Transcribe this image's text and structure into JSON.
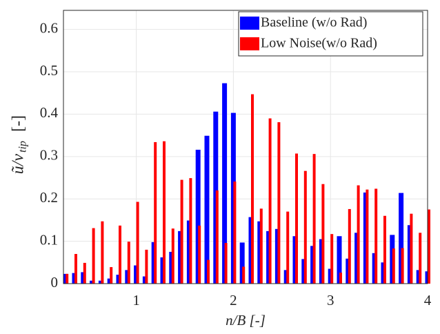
{
  "chart_data": {
    "type": "bar",
    "x_label": "n/B [-]",
    "y_label": "ũ/v",
    "y_label_subscript": "tip",
    "y_label_unit": "[-]",
    "x": [
      0.2727,
      0.3636,
      0.4545,
      0.5455,
      0.6364,
      0.7273,
      0.8182,
      0.9091,
      1.0,
      1.0909,
      1.1818,
      1.2727,
      1.3636,
      1.4545,
      1.5455,
      1.6364,
      1.7273,
      1.8182,
      1.9091,
      2.0,
      2.0909,
      2.1818,
      2.2727,
      2.3636,
      2.4545,
      2.5455,
      2.6364,
      2.7273,
      2.8182,
      2.9091,
      3.0,
      3.0909,
      3.1818,
      3.2727,
      3.3636,
      3.4545,
      3.5455,
      3.6364,
      3.7273,
      3.8182,
      3.9091,
      4.0
    ],
    "series": [
      {
        "name": "Baseline (w/o Rad)",
        "color": "#0000ff",
        "values": [
          0.023,
          0.025,
          0.027,
          0.007,
          0.007,
          0.012,
          0.021,
          0.032,
          0.043,
          0.017,
          0.098,
          0.062,
          0.075,
          0.124,
          0.149,
          0.316,
          0.349,
          0.406,
          0.473,
          0.403,
          0.097,
          0.157,
          0.147,
          0.124,
          0.129,
          0.032,
          0.112,
          0.058,
          0.089,
          0.105,
          0.035,
          0.112,
          0.059,
          0.12,
          0.215,
          0.072,
          0.05,
          0.115,
          0.214,
          0.138,
          0.032,
          0.029
        ]
      },
      {
        "name": "Low Noise(w/o Rad)",
        "color": "#ff0000",
        "values": [
          0.023,
          0.07,
          0.049,
          0.131,
          0.147,
          0.039,
          0.137,
          0.099,
          0.193,
          0.08,
          0.334,
          0.336,
          0.13,
          0.245,
          0.249,
          0.137,
          0.056,
          0.22,
          0.096,
          0.241,
          0.04,
          0.447,
          0.177,
          0.39,
          0.381,
          0.17,
          0.307,
          0.266,
          0.306,
          0.235,
          0.117,
          0.026,
          0.176,
          0.232,
          0.222,
          0.224,
          0.16,
          0.083,
          0.084,
          0.165,
          0.12,
          0.175
        ]
      }
    ],
    "xlim": [
      0.25,
      4
    ],
    "xticks": [
      1,
      2,
      3,
      4
    ],
    "ylim": [
      0,
      0.645
    ],
    "yticks": [
      0,
      0.1,
      0.2,
      0.3,
      0.4,
      0.5,
      0.6
    ],
    "grid": true,
    "legend": "upper right"
  }
}
